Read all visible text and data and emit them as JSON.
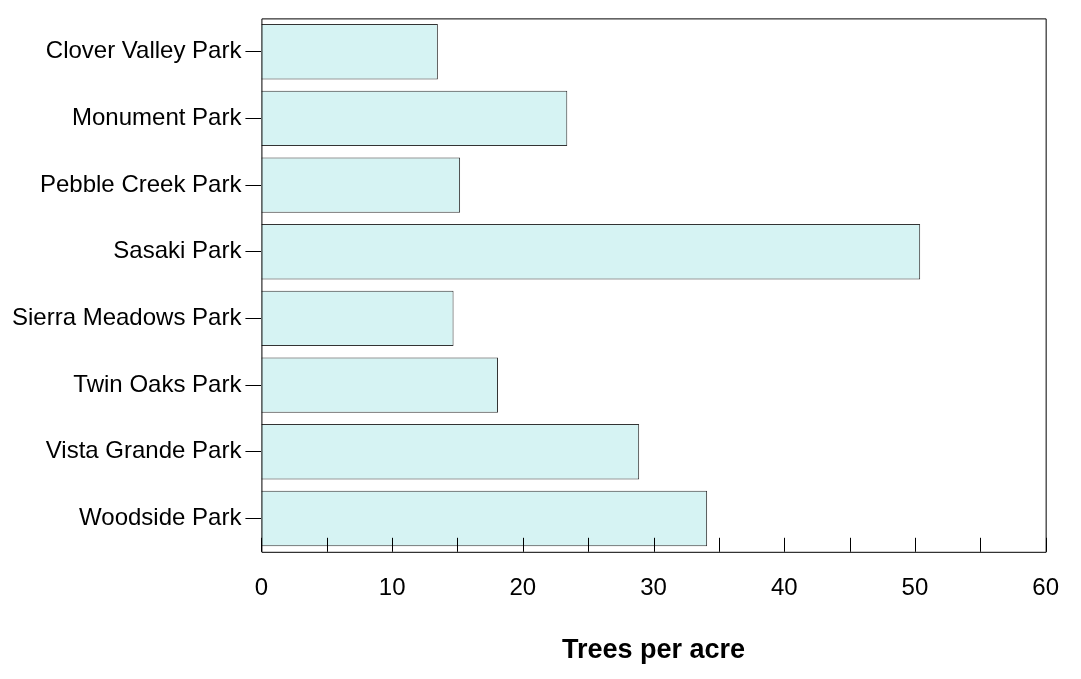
{
  "chart_data": {
    "type": "bar",
    "orientation": "horizontal",
    "xlabel": "Trees per acre",
    "categories": [
      "Clover Valley Park",
      "Monument Park",
      "Pebble Creek Park",
      "Sasaki Park",
      "Sierra Meadows Park",
      "Twin Oaks Park",
      "Vista Grande Park",
      "Woodside Park"
    ],
    "values": [
      13.5,
      23.4,
      15.2,
      50.4,
      14.7,
      18.1,
      28.9,
      34.1
    ],
    "color": "#d6f3f3",
    "xlim": [
      0,
      60
    ],
    "xticks": [
      0,
      {
        "value": 5,
        "label": null
      },
      10,
      {
        "value": 15,
        "label": null
      },
      20,
      {
        "value": 25,
        "label": null
      },
      30,
      {
        "value": 35,
        "label": null
      },
      40,
      {
        "value": 45,
        "label": null
      },
      50,
      {
        "value": 55,
        "label": null
      },
      60
    ],
    "grid": false,
    "legend": false
  }
}
